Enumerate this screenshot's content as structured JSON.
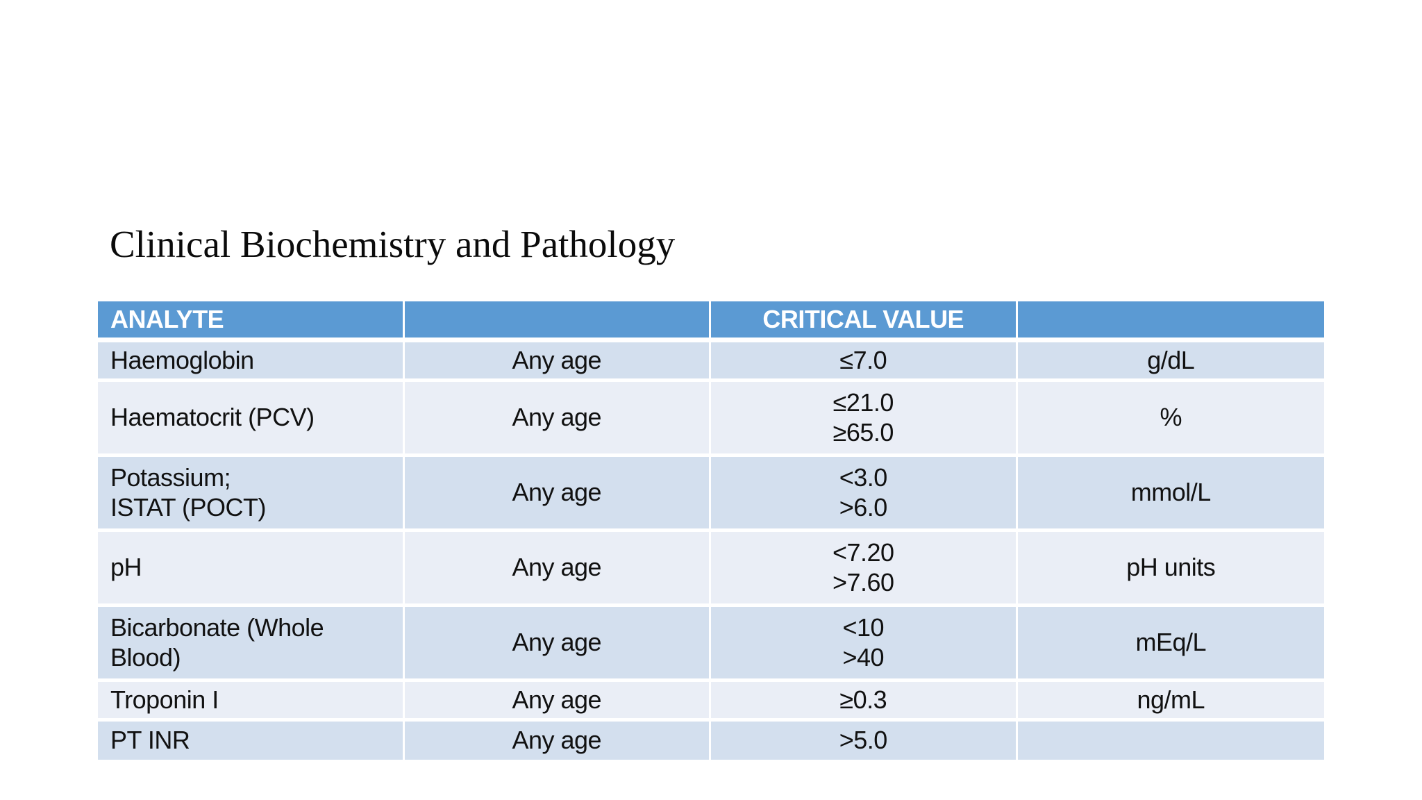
{
  "slide": {
    "title": "Clinical Biochemistry and Pathology"
  },
  "table": {
    "columns": [
      "ANALYTE",
      "",
      "CRITICAL VALUE",
      ""
    ],
    "rows": [
      {
        "analyte": "Haemoglobin",
        "age": "Any age",
        "critical_value": "≤7.0",
        "units": "g/dL"
      },
      {
        "analyte": "Haematocrit (PCV)",
        "age": "Any age",
        "critical_value": "≤21.0\n≥65.0",
        "units": "%"
      },
      {
        "analyte": "Potassium;\nISTAT (POCT)",
        "age": "Any age",
        "critical_value": "<3.0\n>6.0",
        "units": "mmol/L"
      },
      {
        "analyte": "pH",
        "age": "Any age",
        "critical_value": "<7.20\n>7.60",
        "units": "pH units"
      },
      {
        "analyte": "Bicarbonate (Whole\nBlood)",
        "age": "Any age",
        "critical_value": "<10\n>40",
        "units": "mEq/L"
      },
      {
        "analyte": "Troponin I",
        "age": "Any age",
        "critical_value": "≥0.3",
        "units": "ng/mL"
      },
      {
        "analyte": "PT INR",
        "age": "Any age",
        "critical_value": ">5.0",
        "units": ""
      }
    ]
  },
  "colors": {
    "background": "#ffffff",
    "header_bg": "#5b9ad3",
    "header_text": "#ffffff",
    "band_dark": "#d3dfee",
    "band_light": "#eaeef6",
    "body_text": "#111111"
  }
}
